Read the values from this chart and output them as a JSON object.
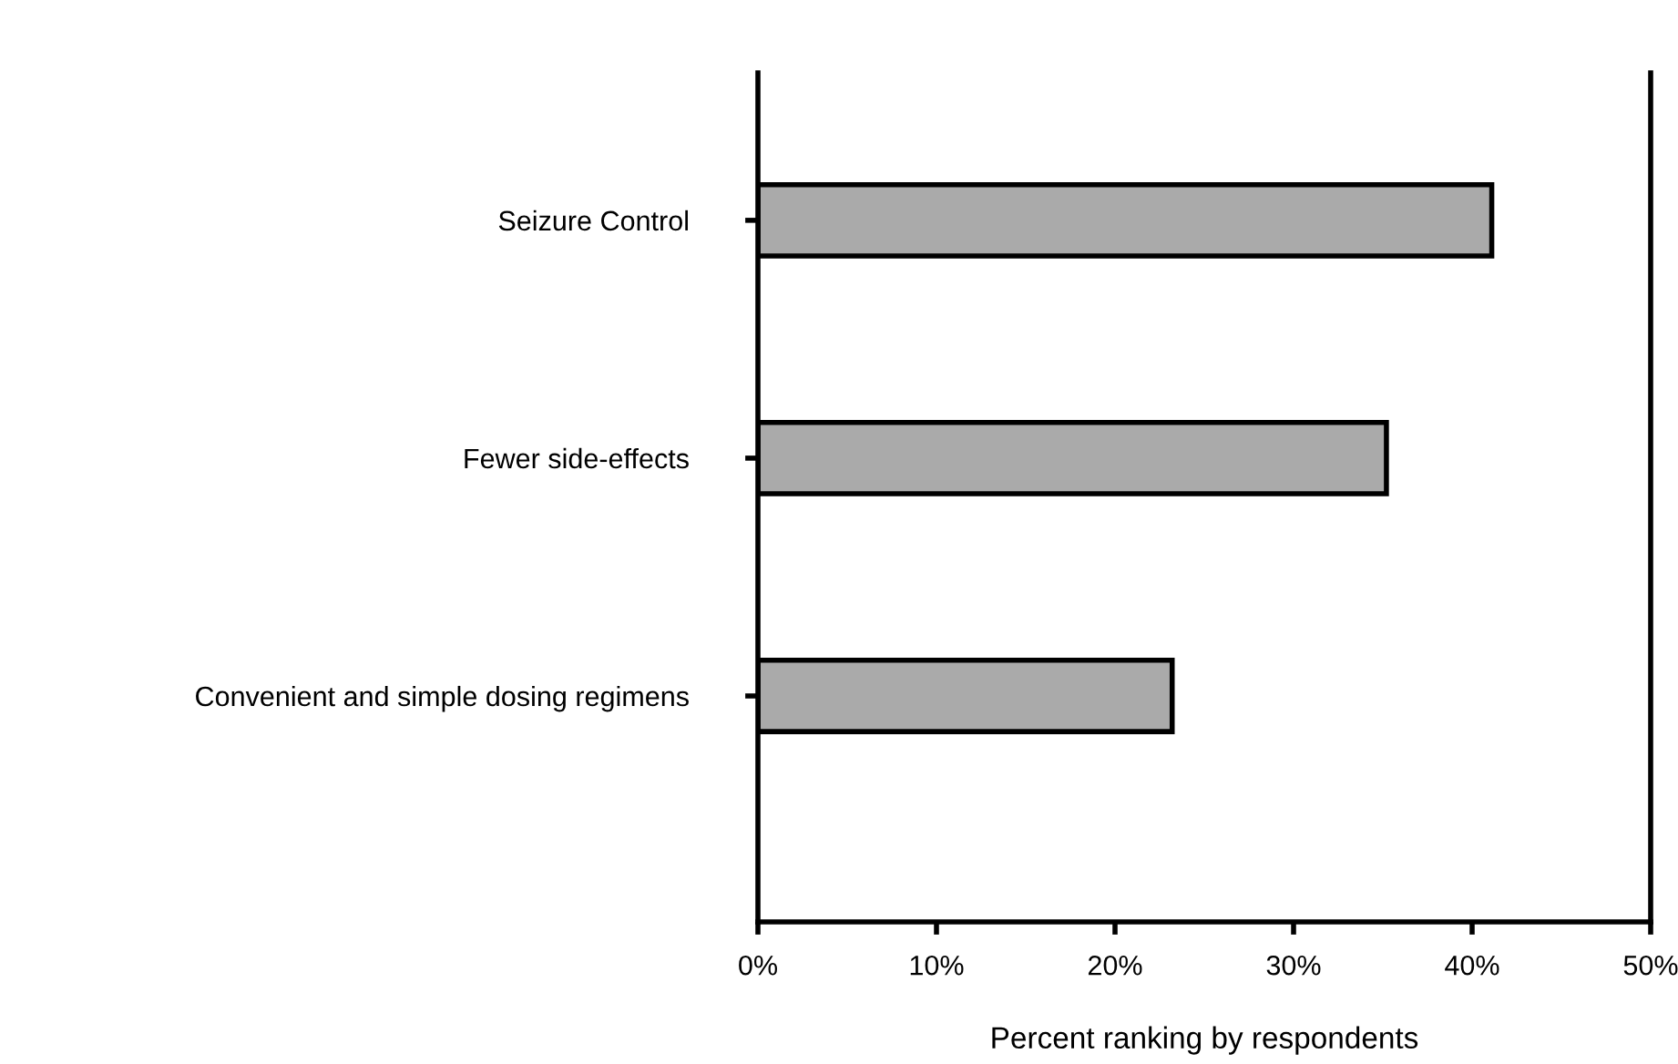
{
  "chart_data": {
    "type": "bar",
    "orientation": "horizontal",
    "xlabel": "Percent ranking by respondents",
    "categories": [
      "Seizure Control",
      "Fewer side-effects",
      "Convenient and simple dosing regimens"
    ],
    "values": [
      41.1,
      35.2,
      23.2
    ],
    "color": "#aaaaaa",
    "xlim": [
      0,
      50
    ],
    "xticks": [
      {
        "value": 0,
        "label": "0%"
      },
      {
        "value": 10,
        "label": "10%"
      },
      {
        "value": 20,
        "label": "20%"
      },
      {
        "value": 30,
        "label": "30%"
      },
      {
        "value": 40,
        "label": "40%"
      },
      {
        "value": 50,
        "label": "50%"
      }
    ],
    "grid": false,
    "legend": false
  }
}
